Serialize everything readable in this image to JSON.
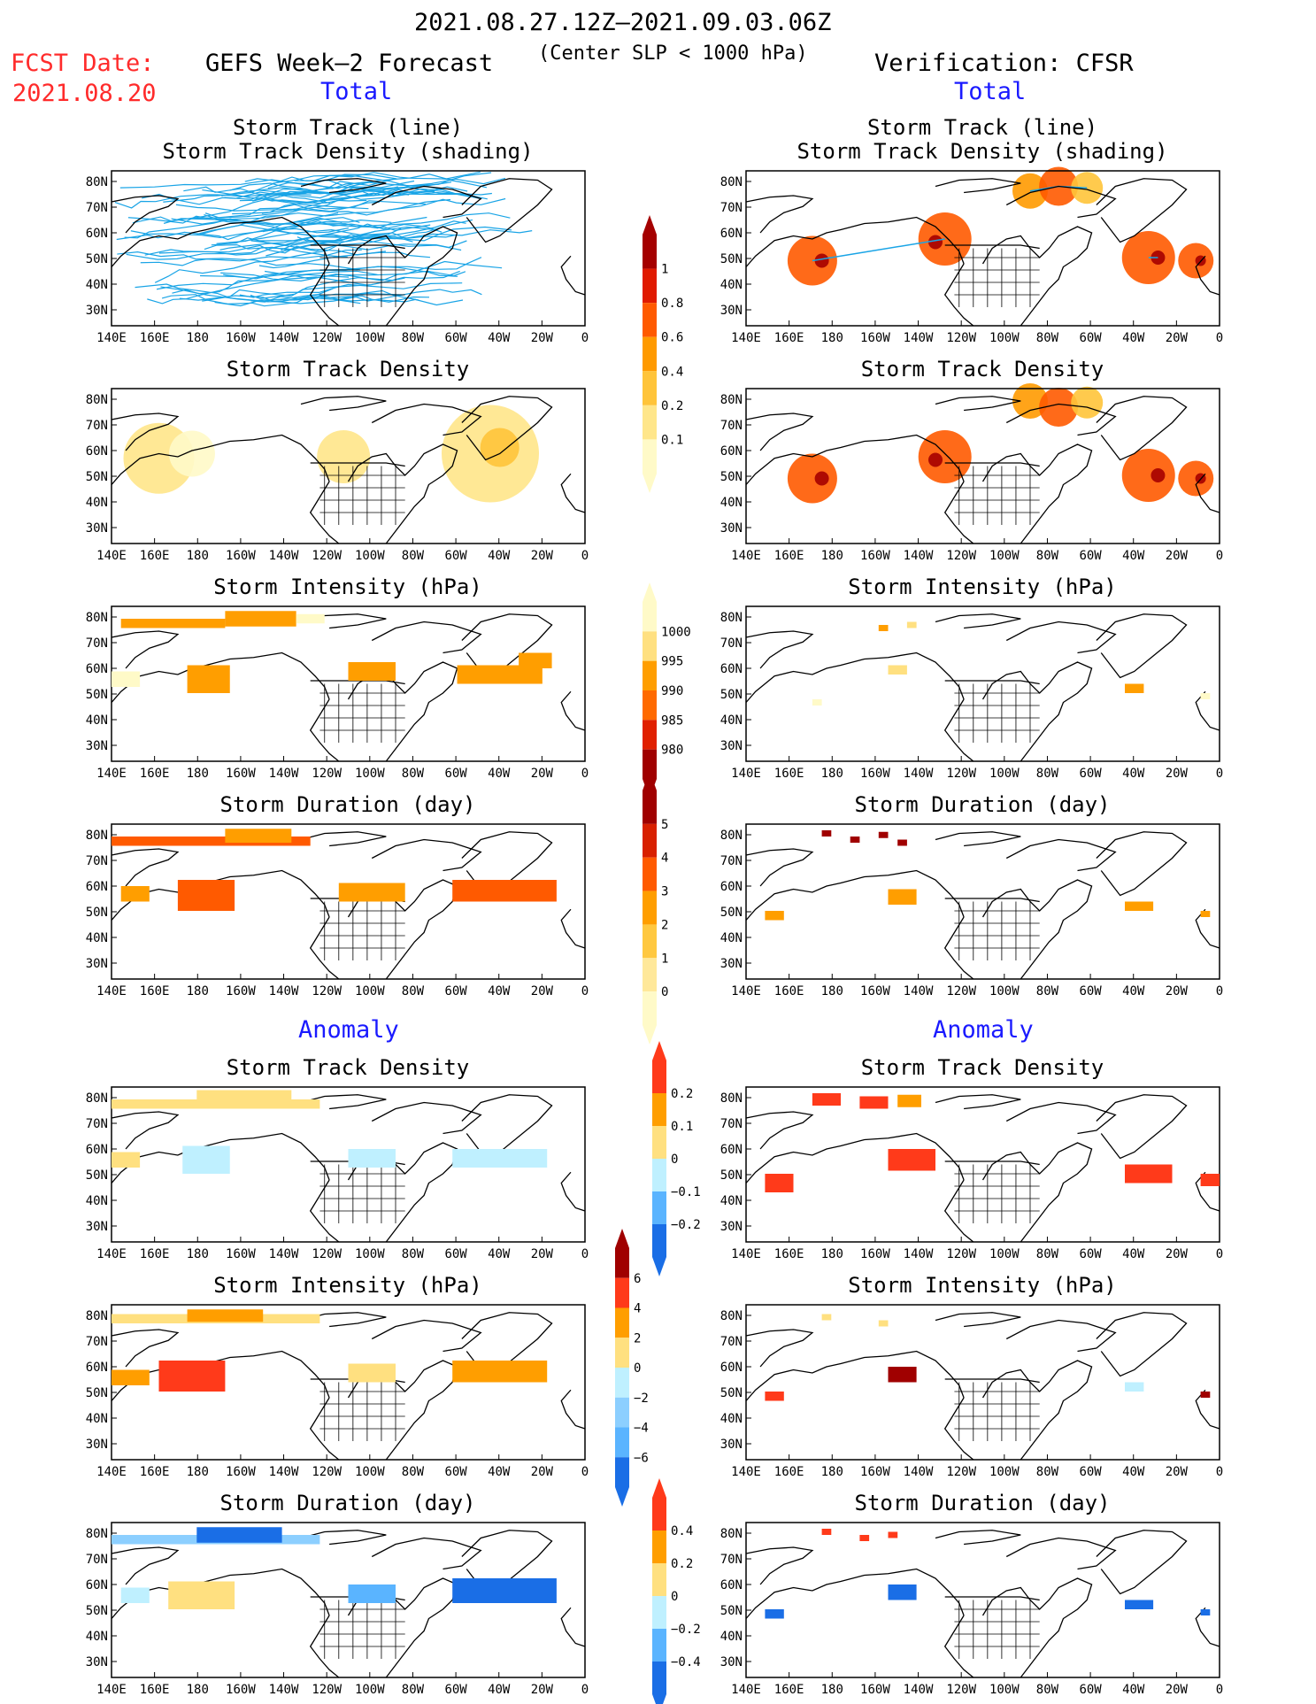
{
  "header": {
    "date_range": "2021.08.27.12Z–2021.09.03.06Z",
    "criterion": "(Center SLP < 1000 hPa)",
    "fcst_label": "FCST Date:",
    "fcst_date": "2021.08.20",
    "left_title": "GEFS Week–2 Forecast",
    "right_title": "Verification: CFSR",
    "total_left": "Total",
    "total_right": "Total",
    "anomaly_left": "Anomaly",
    "anomaly_right": "Anomaly"
  },
  "panel_titles": {
    "track_line": "Storm Track (line)",
    "track_shading": "Storm Track Density (shading)",
    "density": "Storm Track Density",
    "intensity": "Storm Intensity (hPa)",
    "duration": "Storm Duration (day)"
  },
  "axes": {
    "lat_ticks": [
      "80N",
      "70N",
      "60N",
      "50N",
      "40N",
      "30N"
    ],
    "lon_ticks": [
      "140E",
      "160E",
      "180",
      "160W",
      "140W",
      "120W",
      "100W",
      "80W",
      "60W",
      "40W",
      "20W",
      "0"
    ]
  },
  "colorbars": [
    {
      "name": "density",
      "labels": [
        "1",
        "0.8",
        "0.6",
        "0.4",
        "0.2",
        "0.1"
      ],
      "colors": [
        "#a50000",
        "#e01a00",
        "#ff5a00",
        "#ff9a00",
        "#ffc43a",
        "#ffe68a",
        "#fffac8"
      ]
    },
    {
      "name": "intensity",
      "labels": [
        "1000",
        "995",
        "990",
        "985",
        "980"
      ],
      "colors": [
        "#fffac8",
        "#ffe080",
        "#ff9e00",
        "#ff6a00",
        "#e02000",
        "#a00000"
      ]
    },
    {
      "name": "duration",
      "labels": [
        "5",
        "4",
        "3",
        "2",
        "1",
        "0"
      ],
      "colors": [
        "#a00000",
        "#d82000",
        "#ff5a00",
        "#ff9e00",
        "#ffc840",
        "#ffe89a",
        "#fffac8"
      ]
    },
    {
      "name": "density_anom",
      "labels": [
        "0.2",
        "0.1",
        "0",
        "−0.1",
        "−0.2"
      ],
      "colors": [
        "#ff3a1a",
        "#ff9e00",
        "#ffe080",
        "#bff0ff",
        "#5ab4ff",
        "#1a6ee6"
      ]
    },
    {
      "name": "intensity_anom",
      "labels": [
        "6",
        "4",
        "2",
        "0",
        "−2",
        "−4",
        "−6"
      ],
      "colors": [
        "#a00000",
        "#ff3a1a",
        "#ff9e00",
        "#ffe080",
        "#bff0ff",
        "#8ccfff",
        "#5ab4ff",
        "#1a6ee6"
      ]
    },
    {
      "name": "duration_anom",
      "labels": [
        "0.4",
        "0.2",
        "0",
        "−0.2",
        "−0.4"
      ],
      "colors": [
        "#ff3a1a",
        "#ff9e00",
        "#ffe080",
        "#bff0ff",
        "#5ab4ff",
        "#1a6ee6"
      ]
    }
  ],
  "chart_data": {
    "type": "heatmap",
    "panels": [
      {
        "column": "GEFS Week–2 Forecast",
        "section": "Total",
        "title": "Storm Track (line) / Storm Track Density (shading)"
      },
      {
        "column": "Verification: CFSR",
        "section": "Total",
        "title": "Storm Track (line) / Storm Track Density (shading)"
      },
      {
        "column": "GEFS Week–2 Forecast",
        "section": "Total",
        "title": "Storm Track Density"
      },
      {
        "column": "Verification: CFSR",
        "section": "Total",
        "title": "Storm Track Density"
      },
      {
        "column": "GEFS Week–2 Forecast",
        "section": "Total",
        "title": "Storm Intensity (hPa)"
      },
      {
        "column": "Verification: CFSR",
        "section": "Total",
        "title": "Storm Intensity (hPa)"
      },
      {
        "column": "GEFS Week–2 Forecast",
        "section": "Total",
        "title": "Storm Duration (day)"
      },
      {
        "column": "Verification: CFSR",
        "section": "Total",
        "title": "Storm Duration (day)"
      },
      {
        "column": "GEFS Week–2 Forecast",
        "section": "Anomaly",
        "title": "Storm Track Density"
      },
      {
        "column": "Verification: CFSR",
        "section": "Anomaly",
        "title": "Storm Track Density"
      },
      {
        "column": "GEFS Week–2 Forecast",
        "section": "Anomaly",
        "title": "Storm Intensity (hPa)"
      },
      {
        "column": "Verification: CFSR",
        "section": "Anomaly",
        "title": "Storm Intensity (hPa)"
      },
      {
        "column": "GEFS Week–2 Forecast",
        "section": "Anomaly",
        "title": "Storm Duration (day)"
      },
      {
        "column": "Verification: CFSR",
        "section": "Anomaly",
        "title": "Storm Duration (day)"
      }
    ],
    "lon_range": [
      "140E",
      "0"
    ],
    "lat_range": [
      "25N",
      "85N"
    ]
  }
}
